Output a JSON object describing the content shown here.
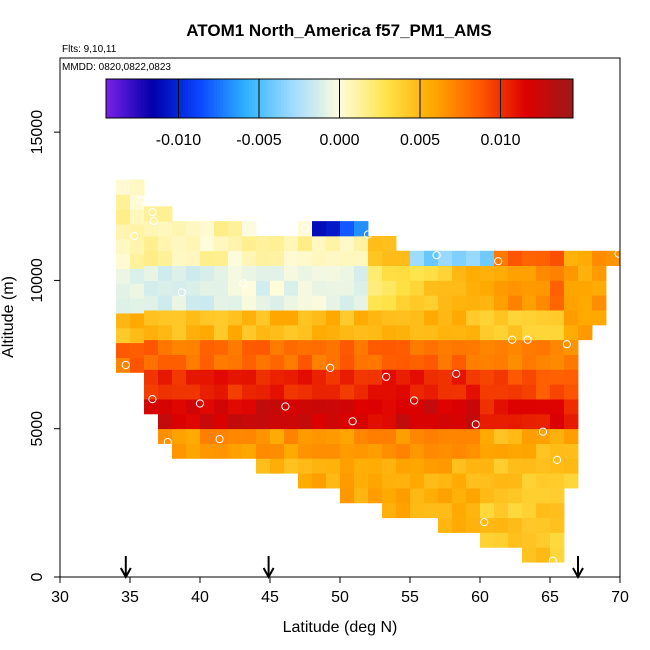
{
  "chart_data": {
    "type": "heatmap",
    "title": "ATOM1 North_America f57_PM1_AMS",
    "subtitle_lines": [
      "Flts: 9,10,11",
      "MMDD: 0820,0822,0823"
    ],
    "xlabel": "Latitude (deg N)",
    "ylabel": "Altitude (m)",
    "xlim": [
      30,
      70
    ],
    "ylim": [
      0,
      17500
    ],
    "x_ticks": [
      30,
      35,
      40,
      45,
      50,
      55,
      60,
      65,
      70
    ],
    "y_ticks": [
      0,
      5000,
      10000,
      15000
    ],
    "colorbar": {
      "range": [
        -0.0145,
        0.0145
      ],
      "ticks": [
        -0.01,
        -0.005,
        0.0,
        0.005,
        0.01
      ],
      "tick_labels": [
        "-0.010",
        "-0.005",
        "0.000",
        "0.005",
        "0.010"
      ],
      "colors": [
        "#7a22e8",
        "#0000aa",
        "#0a46ff",
        "#2fb2ff",
        "#a0dcff",
        "#fffcdc",
        "#ffe44a",
        "#ffa800",
        "#ff5a00",
        "#dd0000",
        "#9c1a1a"
      ]
    },
    "grid": {
      "lat_bin_deg": 1.0,
      "alt_bin_m": 500,
      "columns": [
        {
          "lat": 35.5,
          "alt_min": 11500,
          "alt_max": 13000
        },
        {
          "lat": 36.5,
          "alt_min": 11000,
          "alt_max": 13000
        },
        {
          "lat": 37.5,
          "alt_min": 4500,
          "alt_max": 12500
        }
      ]
    },
    "profile_points": [
      {
        "lat": 34.7,
        "alt": 7150
      },
      {
        "lat": 35.3,
        "alt": 11500
      },
      {
        "lat": 35.8,
        "alt": 12700
      },
      {
        "lat": 36.3,
        "alt": 12700
      },
      {
        "lat": 36.6,
        "alt": 12300
      },
      {
        "lat": 36.7,
        "alt": 12000
      },
      {
        "lat": 36.6,
        "alt": 6000
      },
      {
        "lat": 37.7,
        "alt": 4550
      },
      {
        "lat": 38.7,
        "alt": 9600
      },
      {
        "lat": 40.0,
        "alt": 5850
      },
      {
        "lat": 41.4,
        "alt": 4650
      },
      {
        "lat": 43.1,
        "alt": 9900
      },
      {
        "lat": 46.1,
        "alt": 5750
      },
      {
        "lat": 47.5,
        "alt": 11750
      },
      {
        "lat": 49.3,
        "alt": 7050
      },
      {
        "lat": 50.9,
        "alt": 5250
      },
      {
        "lat": 52.0,
        "alt": 11550
      },
      {
        "lat": 53.3,
        "alt": 6750
      },
      {
        "lat": 55.3,
        "alt": 5950
      },
      {
        "lat": 56.9,
        "alt": 10850
      },
      {
        "lat": 58.3,
        "alt": 6850
      },
      {
        "lat": 59.7,
        "alt": 5150
      },
      {
        "lat": 60.3,
        "alt": 1850
      },
      {
        "lat": 61.3,
        "alt": 10650
      },
      {
        "lat": 62.3,
        "alt": 8000
      },
      {
        "lat": 63.4,
        "alt": 8000
      },
      {
        "lat": 64.5,
        "alt": 4900
      },
      {
        "lat": 65.2,
        "alt": 550
      },
      {
        "lat": 65.5,
        "alt": 3950
      },
      {
        "lat": 66.2,
        "alt": 7850
      },
      {
        "lat": 69.9,
        "alt": 10900
      }
    ],
    "arrows_lat": [
      34.7,
      44.9,
      67.0
    ]
  }
}
